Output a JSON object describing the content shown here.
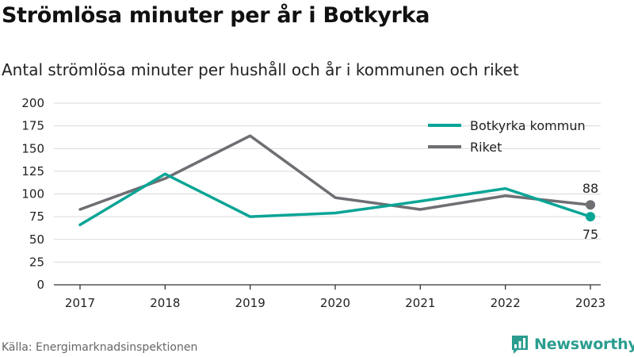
{
  "title": "Strömlösa minuter per år i Botkyrka",
  "subtitle": "Antal strömlösa minuter per hushåll och år i kommunen och riket",
  "source": "Källa: Energimarknadsinspektionen",
  "brand": "Newsworthy",
  "colors": {
    "botkyrka": "#0aa596",
    "riket": "#6e6e73",
    "grid": "#d9d9d9",
    "axis": "#333333",
    "brand": "#2a9d8f"
  },
  "chart_data": {
    "type": "line",
    "title": "Strömlösa minuter per år i Botkyrka",
    "subtitle": "Antal strömlösa minuter per hushåll och år i kommunen och riket",
    "xlabel": "",
    "ylabel": "",
    "categories": [
      "2017",
      "2018",
      "2019",
      "2020",
      "2021",
      "2022",
      "2023"
    ],
    "ylim": [
      0,
      200
    ],
    "yticks": [
      0,
      25,
      50,
      75,
      100,
      125,
      150,
      175,
      200
    ],
    "grid": "horizontal",
    "legend_position": "top-right",
    "series": [
      {
        "name": "Botkyrka kommun",
        "key": "botkyrka",
        "values": [
          66,
          122,
          75,
          79,
          92,
          106,
          75
        ],
        "end_label": "75"
      },
      {
        "name": "Riket",
        "key": "riket",
        "values": [
          83,
          117,
          164,
          96,
          83,
          98,
          88
        ],
        "end_label": "88"
      }
    ]
  }
}
